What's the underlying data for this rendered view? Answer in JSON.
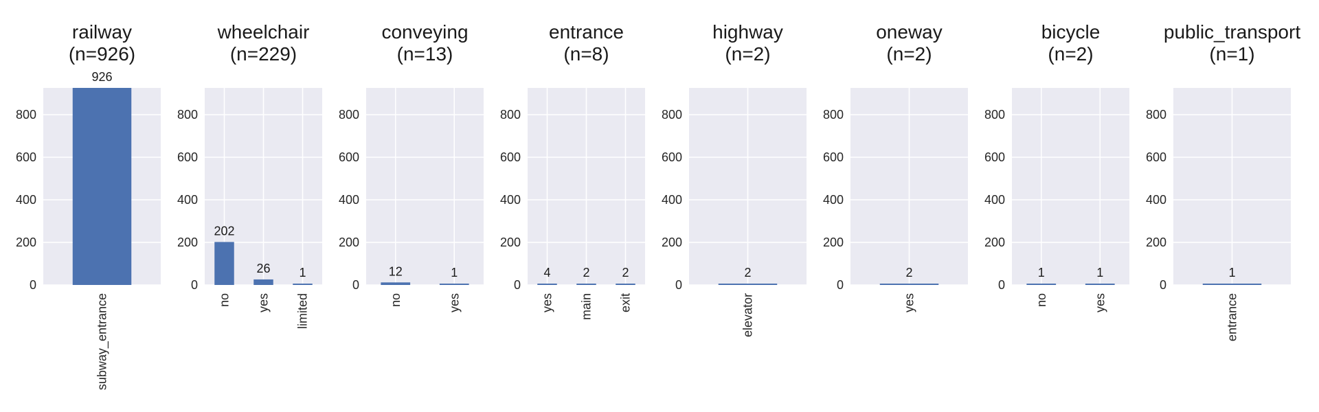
{
  "colors": {
    "bar": "#4c72b0",
    "panel_background": "#eaeaf2",
    "grid": "#ffffff"
  },
  "chart_data": [
    {
      "type": "bar",
      "title": "railway\n(n=926)",
      "categories": [
        "subway_entrance"
      ],
      "values": [
        926
      ],
      "ylim": [
        0,
        926
      ],
      "yticks": [
        0,
        200,
        400,
        600,
        800
      ],
      "grid": true
    },
    {
      "type": "bar",
      "title": "wheelchair\n(n=229)",
      "categories": [
        "no",
        "yes",
        "limited"
      ],
      "values": [
        202,
        26,
        1
      ],
      "ylim": [
        0,
        926
      ],
      "yticks": [
        0,
        200,
        400,
        600,
        800
      ],
      "grid": true
    },
    {
      "type": "bar",
      "title": "conveying\n(n=13)",
      "categories": [
        "no",
        "yes"
      ],
      "values": [
        12,
        1
      ],
      "ylim": [
        0,
        926
      ],
      "yticks": [
        0,
        200,
        400,
        600,
        800
      ],
      "grid": true
    },
    {
      "type": "bar",
      "title": "entrance\n(n=8)",
      "categories": [
        "yes",
        "main",
        "exit"
      ],
      "values": [
        4,
        2,
        2
      ],
      "ylim": [
        0,
        926
      ],
      "yticks": [
        0,
        200,
        400,
        600,
        800
      ],
      "grid": true
    },
    {
      "type": "bar",
      "title": "highway\n(n=2)",
      "categories": [
        "elevator"
      ],
      "values": [
        2
      ],
      "ylim": [
        0,
        926
      ],
      "yticks": [
        0,
        200,
        400,
        600,
        800
      ],
      "grid": true
    },
    {
      "type": "bar",
      "title": "oneway\n(n=2)",
      "categories": [
        "yes"
      ],
      "values": [
        2
      ],
      "ylim": [
        0,
        926
      ],
      "yticks": [
        0,
        200,
        400,
        600,
        800
      ],
      "grid": true
    },
    {
      "type": "bar",
      "title": "bicycle\n(n=2)",
      "categories": [
        "no",
        "yes"
      ],
      "values": [
        1,
        1
      ],
      "ylim": [
        0,
        926
      ],
      "yticks": [
        0,
        200,
        400,
        600,
        800
      ],
      "grid": true
    },
    {
      "type": "bar",
      "title": "public_transport\n(n=1)",
      "categories": [
        "entrance"
      ],
      "values": [
        1
      ],
      "ylim": [
        0,
        926
      ],
      "yticks": [
        0,
        200,
        400,
        600,
        800
      ],
      "grid": true
    }
  ]
}
